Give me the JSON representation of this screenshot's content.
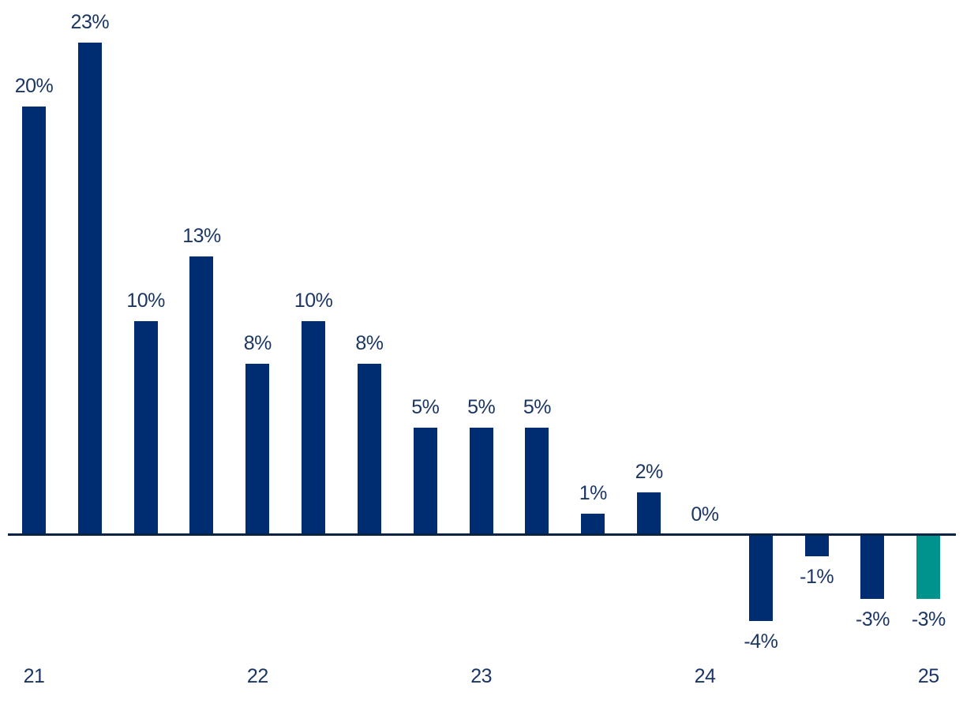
{
  "chart_data": {
    "type": "bar",
    "title": "",
    "x_unit": "quarterly bars labeled by year",
    "values": [
      20,
      23,
      10,
      13,
      8,
      10,
      8,
      5,
      5,
      5,
      1,
      2,
      0,
      -4,
      -1,
      -3,
      -3
    ],
    "data_labels": [
      "20%",
      "23%",
      "10%",
      "13%",
      "8%",
      "10%",
      "8%",
      "5%",
      "5%",
      "5%",
      "1%",
      "2%",
      "0%",
      "-4%",
      "-1%",
      "-3%",
      "-3%"
    ],
    "x_tick_labels": [
      "21",
      "22",
      "23",
      "24",
      "25"
    ],
    "x_tick_bar_indices": [
      0,
      4,
      8,
      12,
      16
    ],
    "highlight_index": 16,
    "ylim": [
      -5,
      25
    ],
    "grid": false,
    "legend": false,
    "colors": {
      "bar": "#002D72",
      "highlight": "#00938D",
      "axis": "#0A2342",
      "label_text": "#1B3665",
      "background": "#FFFFFF"
    }
  }
}
